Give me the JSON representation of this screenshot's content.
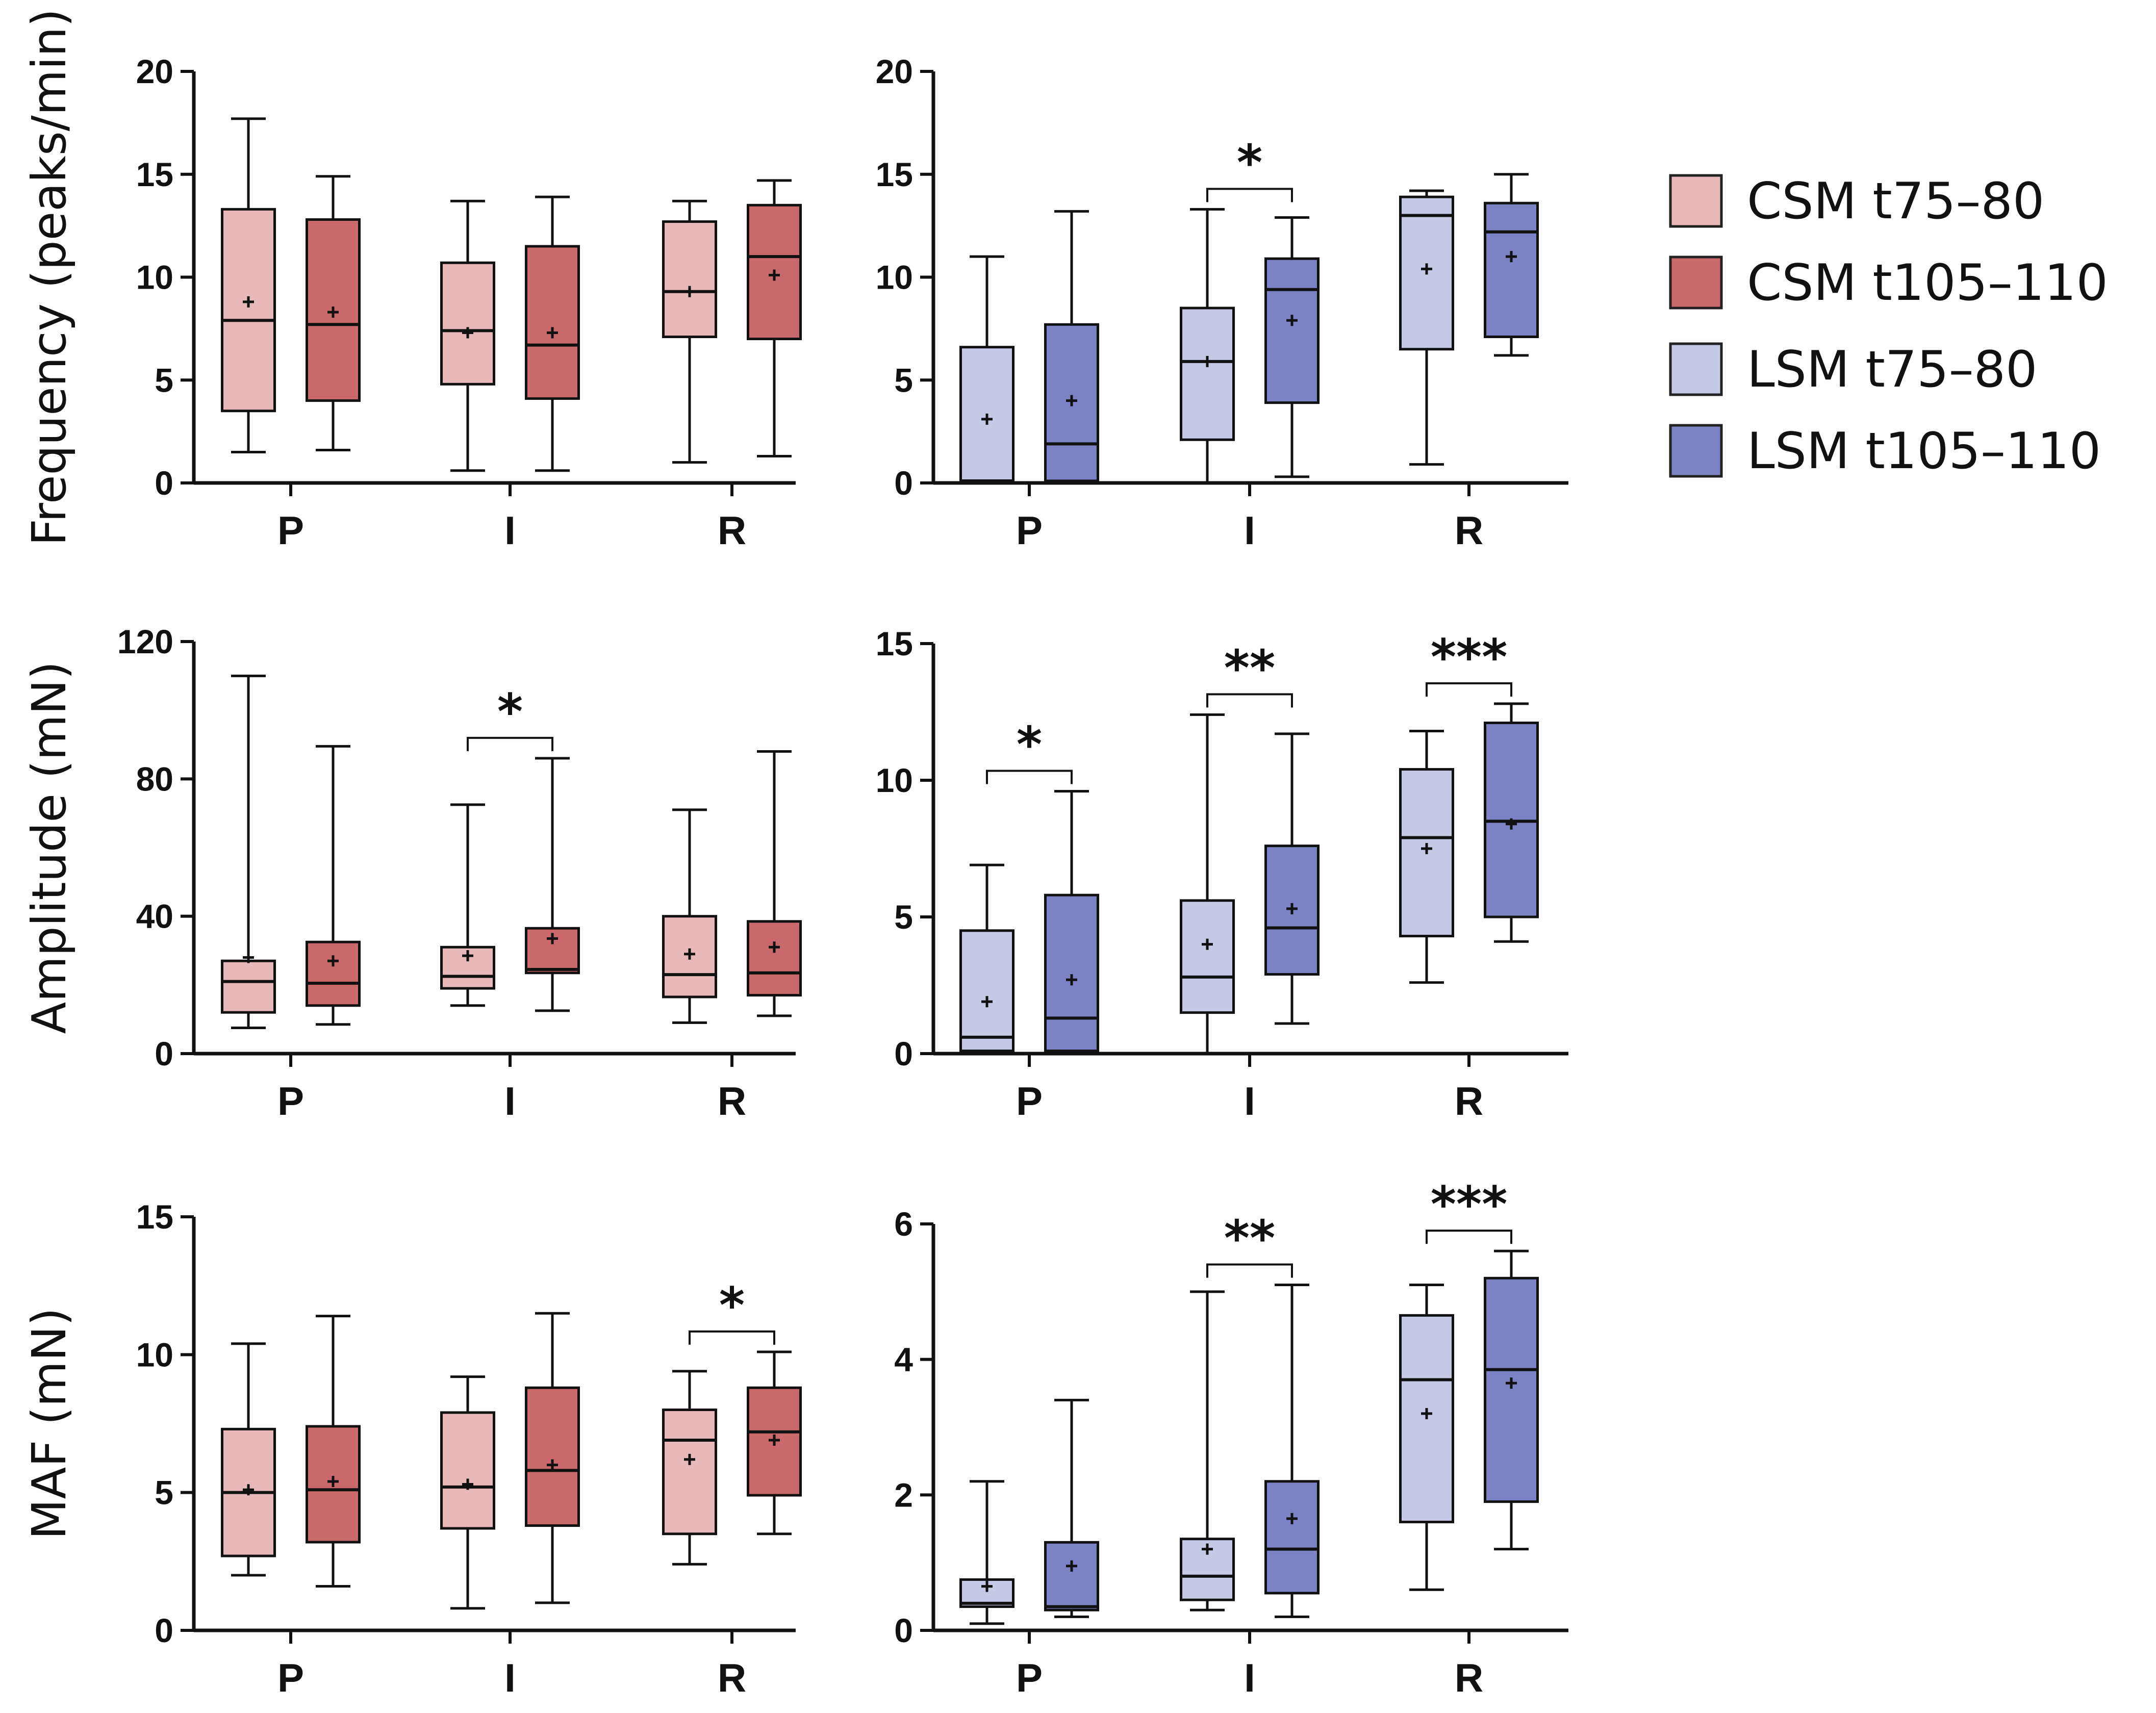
{
  "legend": [
    {
      "label": "CSM t75–80",
      "color": "#e8b9bb"
    },
    {
      "label": "CSM t105–110",
      "color": "#c9696b"
    },
    {
      "label": "LSM t75–80",
      "color": "#c6c9e6"
    },
    {
      "label": "LSM t105–110",
      "color": "#7c82c4"
    }
  ],
  "chart_data": [
    {
      "type": "box",
      "ylabel": "Frequency (peaks/min)",
      "ylim": [
        0,
        20
      ],
      "yticks": [
        "0",
        "5",
        "10",
        "15",
        "20"
      ],
      "categories": [
        "P",
        "I",
        "R"
      ],
      "series_names": [
        "CSM t75–80",
        "CSM t105–110"
      ],
      "boxes": [
        {
          "cat": 0,
          "series": 0,
          "min": 1.5,
          "q1": 3.5,
          "median": 7.9,
          "q3": 13.3,
          "max": 17.7,
          "mean": 8.8
        },
        {
          "cat": 0,
          "series": 1,
          "min": 1.6,
          "q1": 4.0,
          "median": 7.7,
          "q3": 12.8,
          "max": 14.9,
          "mean": 8.3
        },
        {
          "cat": 1,
          "series": 0,
          "min": 0.6,
          "q1": 4.8,
          "median": 7.4,
          "q3": 10.7,
          "max": 13.7,
          "mean": 7.3
        },
        {
          "cat": 1,
          "series": 1,
          "min": 0.6,
          "q1": 4.1,
          "median": 6.7,
          "q3": 11.5,
          "max": 13.9,
          "mean": 7.3
        },
        {
          "cat": 2,
          "series": 0,
          "min": 1.0,
          "q1": 7.1,
          "median": 9.3,
          "q3": 12.7,
          "max": 13.7,
          "mean": 9.3
        },
        {
          "cat": 2,
          "series": 1,
          "min": 1.3,
          "q1": 7.0,
          "median": 11.0,
          "q3": 13.5,
          "max": 14.7,
          "mean": 10.1
        }
      ],
      "significance": []
    },
    {
      "type": "box",
      "ylabel": "",
      "ylim": [
        0,
        20
      ],
      "yticks": [
        "0",
        "5",
        "10",
        "15",
        "20"
      ],
      "categories": [
        "P",
        "I",
        "R"
      ],
      "series_names": [
        "LSM t75–80",
        "LSM t105–110"
      ],
      "boxes": [
        {
          "cat": 0,
          "series": 0,
          "min": 0.0,
          "q1": 0.1,
          "median": 0.1,
          "q3": 6.6,
          "max": 11.0,
          "mean": 3.1
        },
        {
          "cat": 0,
          "series": 1,
          "min": 0.0,
          "q1": 0.1,
          "median": 1.9,
          "q3": 7.7,
          "max": 13.2,
          "mean": 4.0
        },
        {
          "cat": 1,
          "series": 0,
          "min": 0.0,
          "q1": 2.1,
          "median": 5.9,
          "q3": 8.5,
          "max": 13.3,
          "mean": 5.9
        },
        {
          "cat": 1,
          "series": 1,
          "min": 0.3,
          "q1": 3.9,
          "median": 9.4,
          "q3": 10.9,
          "max": 12.9,
          "mean": 7.9
        },
        {
          "cat": 2,
          "series": 0,
          "min": 0.9,
          "q1": 6.5,
          "median": 13.0,
          "q3": 13.9,
          "max": 14.2,
          "mean": 10.4
        },
        {
          "cat": 2,
          "series": 1,
          "min": 6.2,
          "q1": 7.1,
          "median": 12.2,
          "q3": 13.6,
          "max": 15.0,
          "mean": 11.0
        }
      ],
      "significance": [
        {
          "cat": 1,
          "label": "*"
        }
      ]
    },
    {
      "type": "box",
      "ylabel": "Amplitude (mN)",
      "ylim": [
        0,
        120
      ],
      "yticks": [
        "0",
        "40",
        "80",
        "120"
      ],
      "categories": [
        "P",
        "I",
        "R"
      ],
      "series_names": [
        "CSM t75–80",
        "CSM t105–110"
      ],
      "boxes": [
        {
          "cat": 0,
          "series": 0,
          "min": 7.5,
          "q1": 12,
          "median": 21,
          "q3": 27,
          "max": 110,
          "mean": 28
        },
        {
          "cat": 0,
          "series": 1,
          "min": 8.5,
          "q1": 14,
          "median": 20.5,
          "q3": 32.5,
          "max": 89.5,
          "mean": 27
        },
        {
          "cat": 1,
          "series": 0,
          "min": 14,
          "q1": 19,
          "median": 22.5,
          "q3": 31,
          "max": 72.5,
          "mean": 28.5
        },
        {
          "cat": 1,
          "series": 1,
          "min": 12.5,
          "q1": 23.5,
          "median": 24.5,
          "q3": 36.5,
          "max": 86,
          "mean": 33.5
        },
        {
          "cat": 2,
          "series": 0,
          "min": 9,
          "q1": 16.5,
          "median": 23,
          "q3": 40,
          "max": 71,
          "mean": 29
        },
        {
          "cat": 2,
          "series": 1,
          "min": 11,
          "q1": 17,
          "median": 23.5,
          "q3": 38.5,
          "max": 88,
          "mean": 31
        }
      ],
      "significance": [
        {
          "cat": 1,
          "label": "*"
        }
      ]
    },
    {
      "type": "box",
      "ylabel": "",
      "ylim": [
        0,
        15
      ],
      "yticks": [
        "0",
        "5",
        "10",
        "15"
      ],
      "categories": [
        "P",
        "I",
        "R"
      ],
      "series_names": [
        "LSM t75–80",
        "LSM t105–110"
      ],
      "boxes": [
        {
          "cat": 0,
          "series": 0,
          "min": 0.0,
          "q1": 0.1,
          "median": 0.6,
          "q3": 4.5,
          "max": 6.9,
          "mean": 1.9
        },
        {
          "cat": 0,
          "series": 1,
          "min": 0.0,
          "q1": 0.1,
          "median": 1.3,
          "q3": 5.8,
          "max": 9.6,
          "mean": 2.7
        },
        {
          "cat": 1,
          "series": 0,
          "min": 0.0,
          "q1": 1.5,
          "median": 2.8,
          "q3": 5.6,
          "max": 12.4,
          "mean": 4.0
        },
        {
          "cat": 1,
          "series": 1,
          "min": 1.1,
          "q1": 2.9,
          "median": 4.6,
          "q3": 7.6,
          "max": 11.7,
          "mean": 5.3
        },
        {
          "cat": 2,
          "series": 0,
          "min": 2.6,
          "q1": 4.3,
          "median": 7.9,
          "q3": 10.4,
          "max": 11.8,
          "mean": 7.5
        },
        {
          "cat": 2,
          "series": 1,
          "min": 4.1,
          "q1": 5.0,
          "median": 8.5,
          "q3": 12.1,
          "max": 12.8,
          "mean": 8.4
        }
      ],
      "significance": [
        {
          "cat": 0,
          "label": "*"
        },
        {
          "cat": 1,
          "label": "**"
        },
        {
          "cat": 2,
          "label": "***"
        }
      ]
    },
    {
      "type": "box",
      "ylabel": "MAF (mN)",
      "ylim": [
        0,
        15
      ],
      "yticks": [
        "0",
        "5",
        "10",
        "15"
      ],
      "categories": [
        "P",
        "I",
        "R"
      ],
      "series_names": [
        "CSM t75–80",
        "CSM t105–110"
      ],
      "boxes": [
        {
          "cat": 0,
          "series": 0,
          "min": 2.0,
          "q1": 2.7,
          "median": 5.0,
          "q3": 7.3,
          "max": 10.4,
          "mean": 5.1
        },
        {
          "cat": 0,
          "series": 1,
          "min": 1.6,
          "q1": 3.2,
          "median": 5.1,
          "q3": 7.4,
          "max": 11.4,
          "mean": 5.4
        },
        {
          "cat": 1,
          "series": 0,
          "min": 0.8,
          "q1": 3.7,
          "median": 5.2,
          "q3": 7.9,
          "max": 9.2,
          "mean": 5.3
        },
        {
          "cat": 1,
          "series": 1,
          "min": 1.0,
          "q1": 3.8,
          "median": 5.8,
          "q3": 8.8,
          "max": 11.5,
          "mean": 6.0
        },
        {
          "cat": 2,
          "series": 0,
          "min": 2.4,
          "q1": 3.5,
          "median": 6.9,
          "q3": 8.0,
          "max": 9.4,
          "mean": 6.2
        },
        {
          "cat": 2,
          "series": 1,
          "min": 3.5,
          "q1": 4.9,
          "median": 7.2,
          "q3": 8.8,
          "max": 10.1,
          "mean": 6.9
        }
      ],
      "significance": [
        {
          "cat": 2,
          "label": "*"
        }
      ]
    },
    {
      "type": "box",
      "ylabel": "",
      "ylim": [
        0,
        6
      ],
      "yticks": [
        "0",
        "2",
        "4",
        "6"
      ],
      "categories": [
        "P",
        "I",
        "R"
      ],
      "series_names": [
        "LSM t75–80",
        "LSM t105–110"
      ],
      "boxes": [
        {
          "cat": 0,
          "series": 0,
          "min": 0.1,
          "q1": 0.35,
          "median": 0.4,
          "q3": 0.75,
          "max": 2.2,
          "mean": 0.65
        },
        {
          "cat": 0,
          "series": 1,
          "min": 0.2,
          "q1": 0.3,
          "median": 0.35,
          "q3": 1.3,
          "max": 3.4,
          "mean": 0.95
        },
        {
          "cat": 1,
          "series": 0,
          "min": 0.3,
          "q1": 0.45,
          "median": 0.8,
          "q3": 1.35,
          "max": 5.0,
          "mean": 1.2
        },
        {
          "cat": 1,
          "series": 1,
          "min": 0.2,
          "q1": 0.55,
          "median": 1.2,
          "q3": 2.2,
          "max": 5.1,
          "mean": 1.65
        },
        {
          "cat": 2,
          "series": 0,
          "min": 0.6,
          "q1": 1.6,
          "median": 3.7,
          "q3": 4.65,
          "max": 5.1,
          "mean": 3.2
        },
        {
          "cat": 2,
          "series": 1,
          "min": 1.2,
          "q1": 1.9,
          "median": 3.85,
          "q3": 5.2,
          "max": 5.6,
          "mean": 3.65
        }
      ],
      "significance": [
        {
          "cat": 1,
          "label": "**"
        },
        {
          "cat": 2,
          "label": "***"
        }
      ]
    }
  ]
}
